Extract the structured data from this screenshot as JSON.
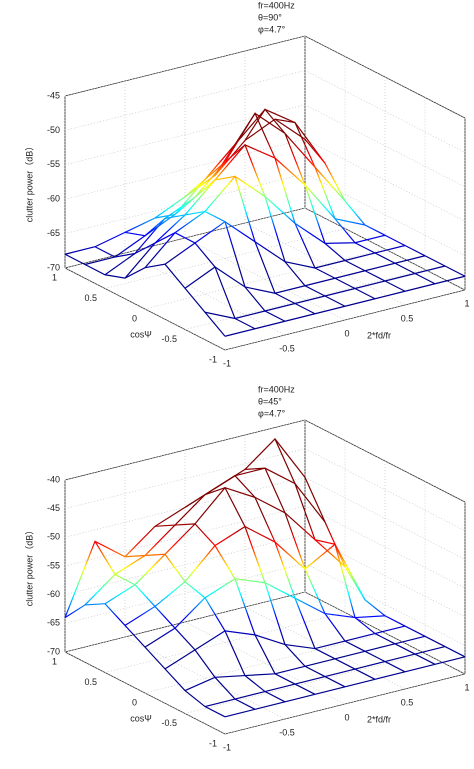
{
  "chart_data": [
    {
      "type": "surface",
      "annotations": [
        "fr=400Hz",
        "θ=90°",
        "φ=4.7°"
      ],
      "xlabel": "2*fd/fr",
      "ylabel": "cosΨ",
      "zlabel": "clutter power（dB）",
      "x": [
        -1,
        -0.75,
        -0.5,
        -0.25,
        0,
        0.25,
        0.5,
        0.75,
        1
      ],
      "y": [
        1,
        0.75,
        0.5,
        0.25,
        0,
        -0.25,
        -0.5,
        -0.75,
        -1
      ],
      "z": [
        [
          -68,
          -68,
          -67,
          -66,
          -64,
          -62,
          -58,
          -56,
          -60
        ],
        [
          -68,
          -68,
          -66,
          -64,
          -60,
          -56,
          -52,
          -55,
          -62
        ],
        [
          -68,
          -66,
          -62,
          -60,
          -56,
          -50,
          -54,
          -60,
          -66
        ],
        [
          -67,
          -63,
          -60,
          -56,
          -52,
          -55,
          -60,
          -66,
          -68
        ],
        [
          -64,
          -60,
          -58,
          -54,
          -58,
          -63,
          -67,
          -68,
          -68
        ],
        [
          -62,
          -60,
          -58,
          -62,
          -66,
          -68,
          -68,
          -68,
          -68
        ],
        [
          -64,
          -62,
          -66,
          -68,
          -68,
          -68,
          -68,
          -68,
          -68
        ],
        [
          -66,
          -68,
          -68,
          -68,
          -68,
          -68,
          -68,
          -68,
          -68
        ],
        [
          -68,
          -68,
          -68,
          -68,
          -68,
          -68,
          -68,
          -68,
          -68
        ]
      ],
      "xlim": [
        -1,
        1
      ],
      "ylim": [
        1,
        -1
      ],
      "zlim": [
        -70,
        -45
      ],
      "xticks": [
        -1,
        -0.5,
        0,
        0.5,
        1
      ],
      "yticks": [
        1,
        0.5,
        0,
        -0.5,
        -1
      ],
      "zticks": [
        -70,
        -65,
        -60,
        -55,
        -50,
        -45
      ],
      "grid": true,
      "colormap": [
        "#00008f",
        "#0000ff",
        "#00ffff",
        "#ffff00",
        "#ff0000",
        "#800000"
      ]
    },
    {
      "type": "surface",
      "annotations": [
        "fr=400Hz",
        "θ=45°",
        "φ=4.7°"
      ],
      "xlabel": "2*fd/fr",
      "ylabel": "cosΨ",
      "zlabel": "clutter power（dB）",
      "x": [
        -1,
        -0.75,
        -0.5,
        -0.25,
        0,
        0.25,
        0.5,
        0.75,
        1
      ],
      "y": [
        1,
        0.75,
        0.5,
        0.25,
        0,
        -0.25,
        -0.5,
        -0.75,
        -1
      ],
      "z": [
        [
          -64,
          -52,
          -56,
          -52,
          -50,
          -48,
          -46,
          -42,
          -50
        ],
        [
          -60,
          -56,
          -54,
          -50,
          -46,
          -44,
          -44,
          -48,
          -56
        ],
        [
          -58,
          -56,
          -52,
          -48,
          -43,
          -46,
          -50,
          -56,
          -62
        ],
        [
          -60,
          -58,
          -55,
          -50,
          -48,
          -52,
          -58,
          -55,
          -66
        ],
        [
          -62,
          -60,
          -56,
          -54,
          -56,
          -60,
          -64,
          -66,
          -67
        ],
        [
          -64,
          -62,
          -60,
          -62,
          -65,
          -67,
          -67,
          -67,
          -67
        ],
        [
          -66,
          -65,
          -66,
          -67,
          -67,
          -67,
          -67,
          -67,
          -67
        ],
        [
          -67,
          -67,
          -67,
          -67,
          -67,
          -67,
          -67,
          -67,
          -67
        ],
        [
          -67,
          -67,
          -67,
          -67,
          -67,
          -67,
          -67,
          -67,
          -67
        ]
      ],
      "xlim": [
        -1,
        1
      ],
      "ylim": [
        1,
        -1
      ],
      "zlim": [
        -70,
        -40
      ],
      "xticks": [
        -1,
        -0.5,
        0,
        0.5,
        1
      ],
      "yticks": [
        1,
        0.5,
        0,
        -0.5,
        -1
      ],
      "zticks": [
        -70,
        -65,
        -60,
        -55,
        -50,
        -45,
        -40
      ],
      "grid": true,
      "colormap": [
        "#00008f",
        "#0000ff",
        "#00ffff",
        "#ffff00",
        "#ff0000",
        "#800000"
      ]
    }
  ]
}
